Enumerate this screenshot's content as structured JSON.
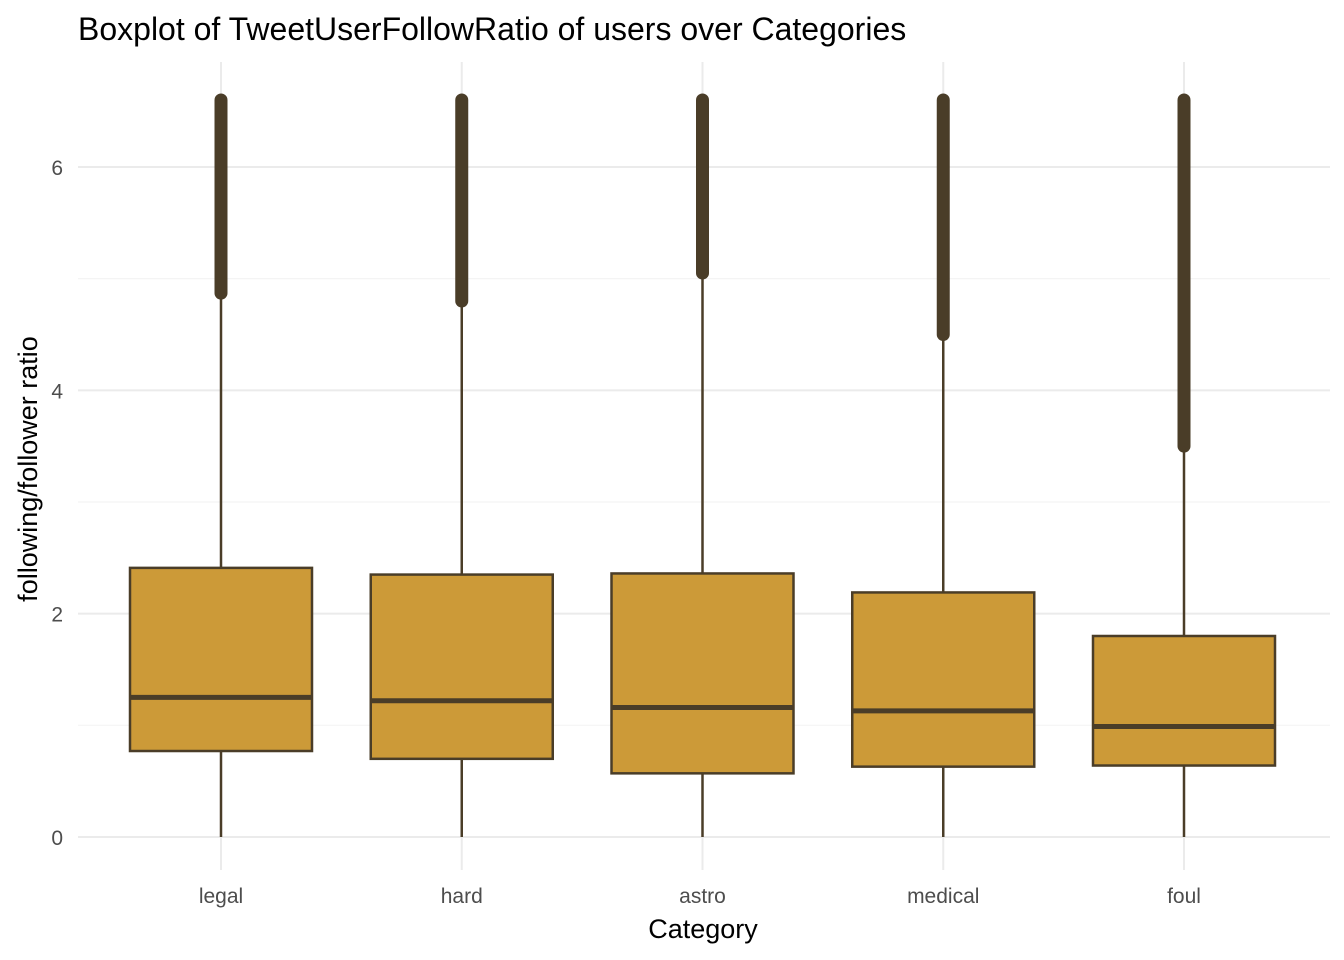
{
  "chart_data": {
    "type": "boxplot",
    "title": "Boxplot of TweetUserFollowRatio of users over Categories",
    "xlabel": "Category",
    "ylabel": "following/follower ratio",
    "categories": [
      "legal",
      "hard",
      "astro",
      "medical",
      "foul"
    ],
    "ylim": [
      -0.3,
      6.85
    ],
    "yticks": [
      0,
      2,
      4,
      6
    ],
    "grid": true,
    "colors": {
      "fill": "#cc9a38",
      "stroke": "#4a3d28",
      "grid_major": "#ebebeb",
      "grid_minor": "#f4f4f4"
    },
    "boxes": [
      {
        "category": "legal",
        "whisker_low": 0.0,
        "q1": 0.77,
        "median": 1.25,
        "q3": 2.41,
        "whisker_high": 4.87,
        "outliers_min": 4.87,
        "outliers_max": 6.6
      },
      {
        "category": "hard",
        "whisker_low": 0.0,
        "q1": 0.7,
        "median": 1.22,
        "q3": 2.35,
        "whisker_high": 4.8,
        "outliers_min": 4.8,
        "outliers_max": 6.6
      },
      {
        "category": "astro",
        "whisker_low": 0.0,
        "q1": 0.57,
        "median": 1.16,
        "q3": 2.36,
        "whisker_high": 5.05,
        "outliers_min": 5.05,
        "outliers_max": 6.6
      },
      {
        "category": "medical",
        "whisker_low": 0.0,
        "q1": 0.63,
        "median": 1.13,
        "q3": 2.19,
        "whisker_high": 4.5,
        "outliers_min": 4.5,
        "outliers_max": 6.6
      },
      {
        "category": "foul",
        "whisker_low": 0.0,
        "q1": 0.64,
        "median": 0.99,
        "q3": 1.8,
        "whisker_high": 3.5,
        "outliers_min": 3.5,
        "outliers_max": 6.6
      }
    ]
  }
}
